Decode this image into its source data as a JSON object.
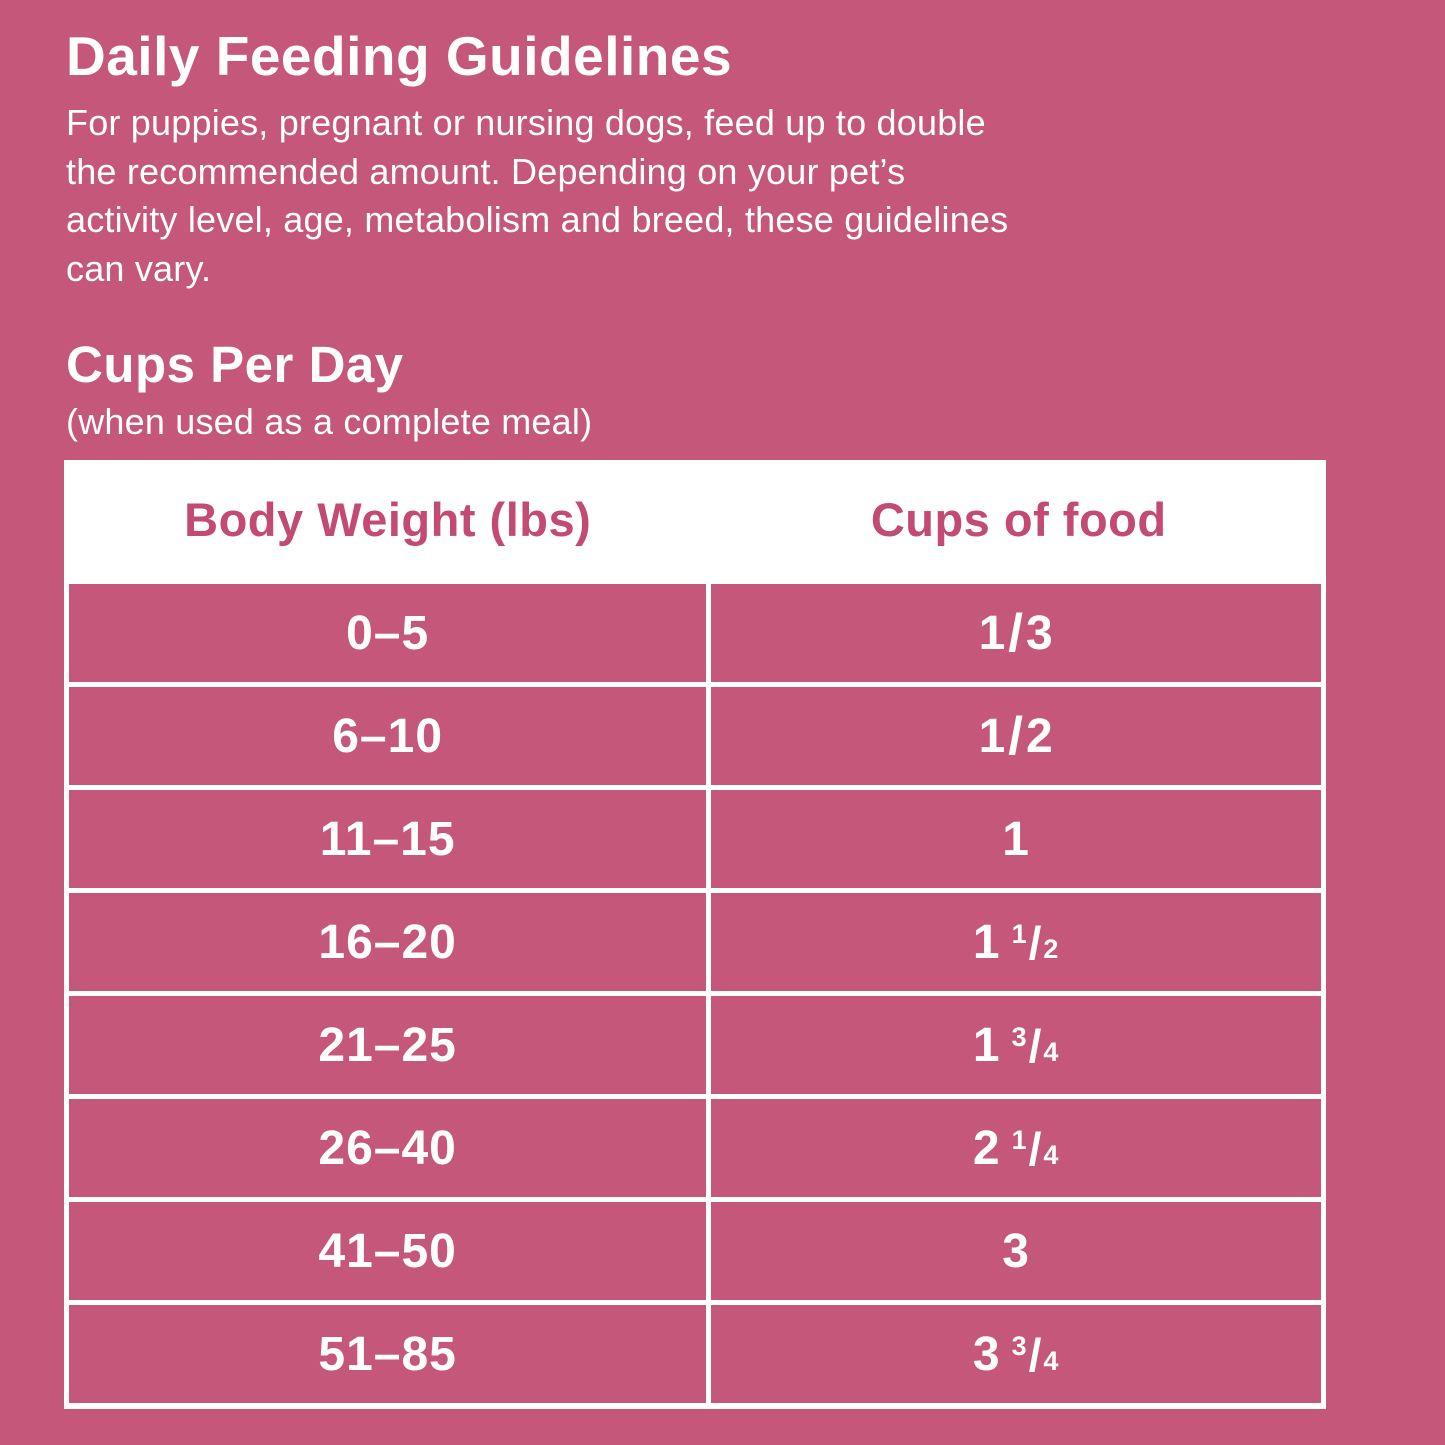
{
  "colors": {
    "background": "#c5577a",
    "table_header_background": "#ffffff",
    "table_header_text": "#c34a72",
    "body_text": "#ffffff",
    "table_border": "#ffffff"
  },
  "title": "Daily Feeding Guidelines",
  "intro_lines": [
    "For puppies, pregnant or nursing dogs, feed up to double",
    "the recommended amount. Depending on your pet’s",
    "activity level, age, metabolism and breed, these guidelines",
    "can vary."
  ],
  "section": {
    "heading": "Cups Per Day",
    "subheading": "(when used as a complete meal)"
  },
  "table": {
    "headers": [
      "Body Weight (lbs)",
      "Cups of food"
    ],
    "rows": [
      {
        "weight": "0–5",
        "cups": {
          "whole": "",
          "num": "1",
          "slash": "/",
          "den": "3"
        }
      },
      {
        "weight": "6–10",
        "cups": {
          "whole": "",
          "num": "1",
          "slash": "/",
          "den": "2"
        }
      },
      {
        "weight": "11–15",
        "cups": {
          "whole": "1",
          "num": "",
          "slash": "",
          "den": ""
        }
      },
      {
        "weight": "16–20",
        "cups": {
          "whole": "1",
          "num": "1",
          "slash": "/",
          "den": "2"
        }
      },
      {
        "weight": "21–25",
        "cups": {
          "whole": "1",
          "num": "3",
          "slash": "/",
          "den": "4"
        }
      },
      {
        "weight": "26–40",
        "cups": {
          "whole": "2",
          "num": "1",
          "slash": "/",
          "den": "4"
        }
      },
      {
        "weight": "41–50",
        "cups": {
          "whole": "3",
          "num": "",
          "slash": "",
          "den": ""
        }
      },
      {
        "weight": "51–85",
        "cups": {
          "whole": "3",
          "num": "3",
          "slash": "/",
          "den": "4"
        }
      }
    ]
  }
}
